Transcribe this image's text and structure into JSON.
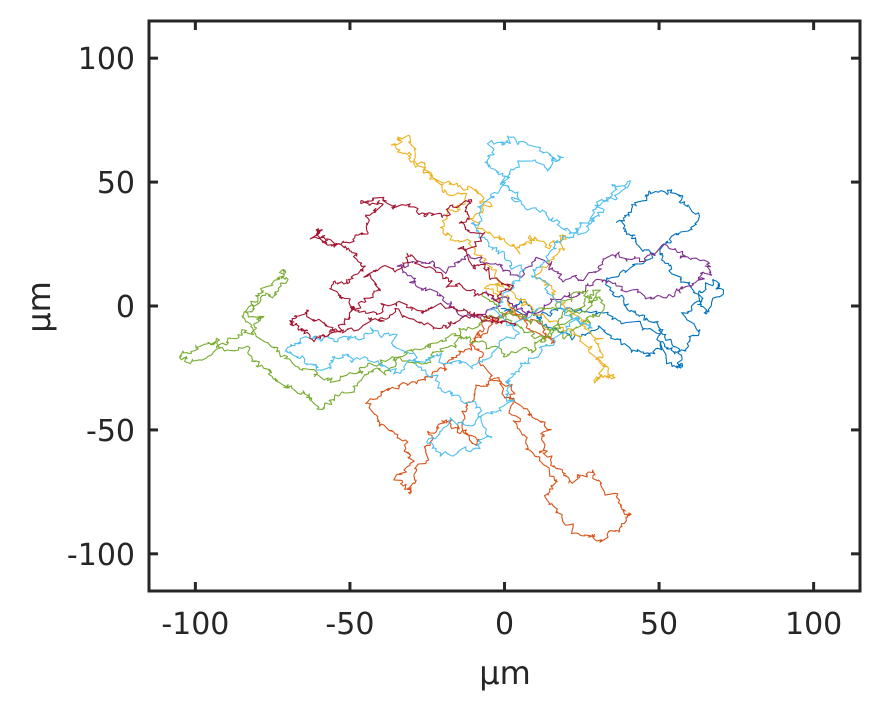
{
  "chart_data": {
    "type": "line",
    "title": "",
    "xlabel": "μm",
    "ylabel": "μm",
    "xlim": [
      -115,
      115
    ],
    "ylim": [
      -115,
      115
    ],
    "xticks": [
      -100,
      -50,
      0,
      50,
      100
    ],
    "yticks": [
      -100,
      -50,
      0,
      50,
      100
    ],
    "xtick_labels": [
      "-100",
      "-50",
      "0",
      "50",
      "100"
    ],
    "ytick_labels": [
      "-100",
      "-50",
      "0",
      "50",
      "100"
    ],
    "grid": false,
    "legend": "none",
    "box": true,
    "series": [
      {
        "color": "#0072BD",
        "points": [
          [
            0,
            0
          ],
          [
            12,
            -6
          ],
          [
            22,
            -14
          ],
          [
            30,
            -9
          ],
          [
            38,
            -15
          ],
          [
            46,
            -20
          ],
          [
            52,
            -14
          ],
          [
            58,
            -18
          ],
          [
            62,
            -12
          ],
          [
            57,
            -3
          ],
          [
            63,
            4
          ],
          [
            68,
            10
          ],
          [
            70,
            5
          ],
          [
            64,
            -2
          ],
          [
            60,
            8
          ],
          [
            54,
            14
          ],
          [
            50,
            22
          ],
          [
            56,
            30
          ],
          [
            62,
            38
          ],
          [
            56,
            44
          ],
          [
            48,
            46
          ],
          [
            42,
            40
          ],
          [
            36,
            34
          ],
          [
            42,
            28
          ],
          [
            48,
            20
          ],
          [
            40,
            14
          ],
          [
            34,
            8
          ],
          [
            40,
            0
          ],
          [
            46,
            -6
          ],
          [
            50,
            -12
          ],
          [
            56,
            -24
          ],
          [
            58,
            -22
          ],
          [
            50,
            -10
          ],
          [
            40,
            -6
          ],
          [
            30,
            -2
          ],
          [
            20,
            0
          ],
          [
            12,
            -4
          ],
          [
            6,
            2
          ],
          [
            0,
            -2
          ]
        ]
      },
      {
        "color": "#D95319",
        "points": [
          [
            0,
            -2
          ],
          [
            -8,
            -10
          ],
          [
            -14,
            -18
          ],
          [
            -20,
            -26
          ],
          [
            -28,
            -30
          ],
          [
            -38,
            -34
          ],
          [
            -44,
            -40
          ],
          [
            -40,
            -48
          ],
          [
            -34,
            -54
          ],
          [
            -30,
            -62
          ],
          [
            -34,
            -70
          ],
          [
            -30,
            -76
          ],
          [
            -26,
            -64
          ],
          [
            -24,
            -52
          ],
          [
            -20,
            -46
          ],
          [
            -14,
            -50
          ],
          [
            -10,
            -56
          ],
          [
            -14,
            -46
          ],
          [
            -10,
            -36
          ],
          [
            -4,
            -30
          ],
          [
            2,
            -36
          ],
          [
            8,
            -44
          ],
          [
            14,
            -50
          ],
          [
            12,
            -58
          ],
          [
            18,
            -66
          ],
          [
            24,
            -70
          ],
          [
            30,
            -68
          ],
          [
            36,
            -76
          ],
          [
            40,
            -84
          ],
          [
            38,
            -90
          ],
          [
            30,
            -96
          ],
          [
            26,
            -92
          ],
          [
            18,
            -86
          ],
          [
            14,
            -78
          ],
          [
            16,
            -70
          ],
          [
            8,
            -58
          ],
          [
            4,
            -46
          ],
          [
            0,
            -34
          ],
          [
            -6,
            -24
          ],
          [
            -10,
            -14
          ],
          [
            -4,
            -6
          ],
          [
            4,
            -2
          ],
          [
            10,
            -10
          ],
          [
            16,
            -16
          ],
          [
            12,
            -8
          ],
          [
            4,
            -4
          ]
        ]
      },
      {
        "color": "#EDB120",
        "points": [
          [
            4,
            -4
          ],
          [
            0,
            4
          ],
          [
            -4,
            12
          ],
          [
            -8,
            20
          ],
          [
            -14,
            26
          ],
          [
            -20,
            30
          ],
          [
            -16,
            38
          ],
          [
            -12,
            44
          ],
          [
            -20,
            48
          ],
          [
            -26,
            54
          ],
          [
            -30,
            60
          ],
          [
            -36,
            66
          ],
          [
            -32,
            68
          ],
          [
            -26,
            58
          ],
          [
            -18,
            50
          ],
          [
            -10,
            46
          ],
          [
            -4,
            40
          ],
          [
            -10,
            34
          ],
          [
            -2,
            28
          ],
          [
            4,
            22
          ],
          [
            8,
            28
          ],
          [
            14,
            24
          ],
          [
            20,
            28
          ],
          [
            16,
            20
          ],
          [
            10,
            12
          ],
          [
            16,
            6
          ],
          [
            20,
            0
          ],
          [
            26,
            -6
          ],
          [
            30,
            -14
          ],
          [
            32,
            -24
          ],
          [
            30,
            -30
          ],
          [
            34,
            -28
          ],
          [
            28,
            -18
          ],
          [
            22,
            -10
          ],
          [
            14,
            -4
          ],
          [
            6,
            2
          ],
          [
            0,
            10
          ],
          [
            -6,
            6
          ],
          [
            -2,
            0
          ]
        ]
      },
      {
        "color": "#7E2F8E",
        "points": [
          [
            -2,
            0
          ],
          [
            -10,
            -4
          ],
          [
            -18,
            0
          ],
          [
            -24,
            6
          ],
          [
            -30,
            10
          ],
          [
            -34,
            16
          ],
          [
            -26,
            18
          ],
          [
            -18,
            14
          ],
          [
            -12,
            20
          ],
          [
            -4,
            16
          ],
          [
            4,
            12
          ],
          [
            12,
            18
          ],
          [
            18,
            14
          ],
          [
            24,
            10
          ],
          [
            30,
            16
          ],
          [
            36,
            20
          ],
          [
            44,
            18
          ],
          [
            52,
            24
          ],
          [
            58,
            20
          ],
          [
            66,
            16
          ],
          [
            64,
            10
          ],
          [
            56,
            6
          ],
          [
            48,
            2
          ],
          [
            40,
            6
          ],
          [
            32,
            10
          ],
          [
            24,
            6
          ],
          [
            16,
            2
          ],
          [
            8,
            -4
          ],
          [
            2,
            2
          ],
          [
            -6,
            6
          ]
        ]
      },
      {
        "color": "#77AC30",
        "points": [
          [
            -6,
            6
          ],
          [
            0,
            -4
          ],
          [
            6,
            -10
          ],
          [
            12,
            -14
          ],
          [
            18,
            -6
          ],
          [
            24,
            0
          ],
          [
            30,
            6
          ],
          [
            26,
            -2
          ],
          [
            18,
            -8
          ],
          [
            10,
            -16
          ],
          [
            2,
            -20
          ],
          [
            -6,
            -16
          ],
          [
            -14,
            -12
          ],
          [
            -20,
            -18
          ],
          [
            -26,
            -24
          ],
          [
            -34,
            -22
          ],
          [
            -40,
            -26
          ],
          [
            -46,
            -30
          ],
          [
            -54,
            -36
          ],
          [
            -60,
            -42
          ],
          [
            -64,
            -36
          ],
          [
            -70,
            -32
          ],
          [
            -76,
            -28
          ],
          [
            -80,
            -22
          ],
          [
            -86,
            -18
          ],
          [
            -92,
            -14
          ],
          [
            -98,
            -16
          ],
          [
            -104,
            -20
          ],
          [
            -98,
            -22
          ],
          [
            -90,
            -16
          ],
          [
            -84,
            -10
          ],
          [
            -78,
            -6
          ],
          [
            -82,
            0
          ],
          [
            -76,
            4
          ],
          [
            -70,
            10
          ],
          [
            -72,
            14
          ],
          [
            -76,
            8
          ],
          [
            -80,
            2
          ],
          [
            -84,
            -4
          ],
          [
            -78,
            -14
          ],
          [
            -70,
            -22
          ],
          [
            -62,
            -28
          ],
          [
            -54,
            -30
          ],
          [
            -46,
            -26
          ],
          [
            -38,
            -22
          ],
          [
            -30,
            -18
          ],
          [
            -22,
            -14
          ],
          [
            -14,
            -10
          ],
          [
            -6,
            -6
          ],
          [
            2,
            -2
          ],
          [
            10,
            -6
          ],
          [
            18,
            -12
          ],
          [
            26,
            -6
          ],
          [
            32,
            0
          ],
          [
            26,
            6
          ],
          [
            18,
            2
          ],
          [
            10,
            -2
          ]
        ]
      },
      {
        "color": "#4DBEEE",
        "points": [
          [
            10,
            -2
          ],
          [
            4,
            -10
          ],
          [
            -4,
            -18
          ],
          [
            -12,
            -24
          ],
          [
            -20,
            -20
          ],
          [
            -28,
            -22
          ],
          [
            -36,
            -26
          ],
          [
            -44,
            -22
          ],
          [
            -52,
            -20
          ],
          [
            -58,
            -26
          ],
          [
            -64,
            -22
          ],
          [
            -70,
            -18
          ],
          [
            -66,
            -14
          ],
          [
            -58,
            -12
          ],
          [
            -50,
            -14
          ],
          [
            -42,
            -10
          ],
          [
            -36,
            -14
          ],
          [
            -30,
            -22
          ],
          [
            -22,
            -30
          ],
          [
            -14,
            -36
          ],
          [
            -8,
            -44
          ],
          [
            -4,
            -52
          ],
          [
            -10,
            -58
          ],
          [
            -20,
            -60
          ],
          [
            -24,
            -54
          ],
          [
            -16,
            -48
          ],
          [
            -6,
            -44
          ],
          [
            2,
            -38
          ],
          [
            0,
            -30
          ],
          [
            6,
            -24
          ],
          [
            12,
            -18
          ],
          [
            18,
            -12
          ],
          [
            24,
            -6
          ],
          [
            28,
            -8
          ],
          [
            20,
            -2
          ],
          [
            14,
            6
          ],
          [
            10,
            14
          ],
          [
            14,
            22
          ],
          [
            20,
            28
          ],
          [
            26,
            34
          ],
          [
            30,
            40
          ],
          [
            36,
            46
          ],
          [
            40,
            50
          ],
          [
            34,
            44
          ],
          [
            28,
            36
          ],
          [
            24,
            30
          ],
          [
            18,
            34
          ],
          [
            10,
            38
          ],
          [
            4,
            44
          ],
          [
            0,
            52
          ],
          [
            -6,
            58
          ],
          [
            -4,
            66
          ],
          [
            2,
            68
          ],
          [
            10,
            64
          ],
          [
            18,
            60
          ],
          [
            14,
            56
          ],
          [
            6,
            58
          ],
          [
            0,
            50
          ],
          [
            -6,
            42
          ],
          [
            -10,
            34
          ],
          [
            -6,
            26
          ],
          [
            0,
            20
          ],
          [
            6,
            14
          ],
          [
            2,
            6
          ],
          [
            -4,
            -2
          ],
          [
            4,
            -8
          ]
        ]
      },
      {
        "color": "#A2142F",
        "points": [
          [
            4,
            -8
          ],
          [
            -4,
            -6
          ],
          [
            -12,
            -2
          ],
          [
            -20,
            2
          ],
          [
            -28,
            -2
          ],
          [
            -36,
            0
          ],
          [
            -44,
            -4
          ],
          [
            -50,
            0
          ],
          [
            -56,
            6
          ],
          [
            -50,
            10
          ],
          [
            -46,
            16
          ],
          [
            -52,
            22
          ],
          [
            -56,
            26
          ],
          [
            -60,
            30
          ],
          [
            -62,
            28
          ],
          [
            -56,
            24
          ],
          [
            -48,
            28
          ],
          [
            -44,
            34
          ],
          [
            -40,
            40
          ],
          [
            -46,
            42
          ],
          [
            -40,
            44
          ],
          [
            -34,
            40
          ],
          [
            -26,
            36
          ],
          [
            -18,
            38
          ],
          [
            -12,
            42
          ],
          [
            -14,
            34
          ],
          [
            -8,
            28
          ],
          [
            -14,
            22
          ],
          [
            -10,
            16
          ],
          [
            -4,
            12
          ],
          [
            2,
            8
          ],
          [
            -4,
            2
          ],
          [
            -10,
            6
          ],
          [
            -18,
            10
          ],
          [
            -24,
            16
          ],
          [
            -30,
            20
          ],
          [
            -36,
            16
          ],
          [
            -44,
            12
          ],
          [
            -40,
            6
          ],
          [
            -46,
            0
          ],
          [
            -52,
            -6
          ],
          [
            -56,
            -10
          ],
          [
            -62,
            -14
          ],
          [
            -66,
            -10
          ],
          [
            -70,
            -6
          ],
          [
            -64,
            -4
          ],
          [
            -56,
            -8
          ],
          [
            -48,
            -10
          ],
          [
            -40,
            -6
          ],
          [
            -32,
            -4
          ],
          [
            -24,
            -8
          ],
          [
            -16,
            -6
          ],
          [
            -8,
            -4
          ],
          [
            0,
            -6
          ]
        ]
      }
    ]
  }
}
